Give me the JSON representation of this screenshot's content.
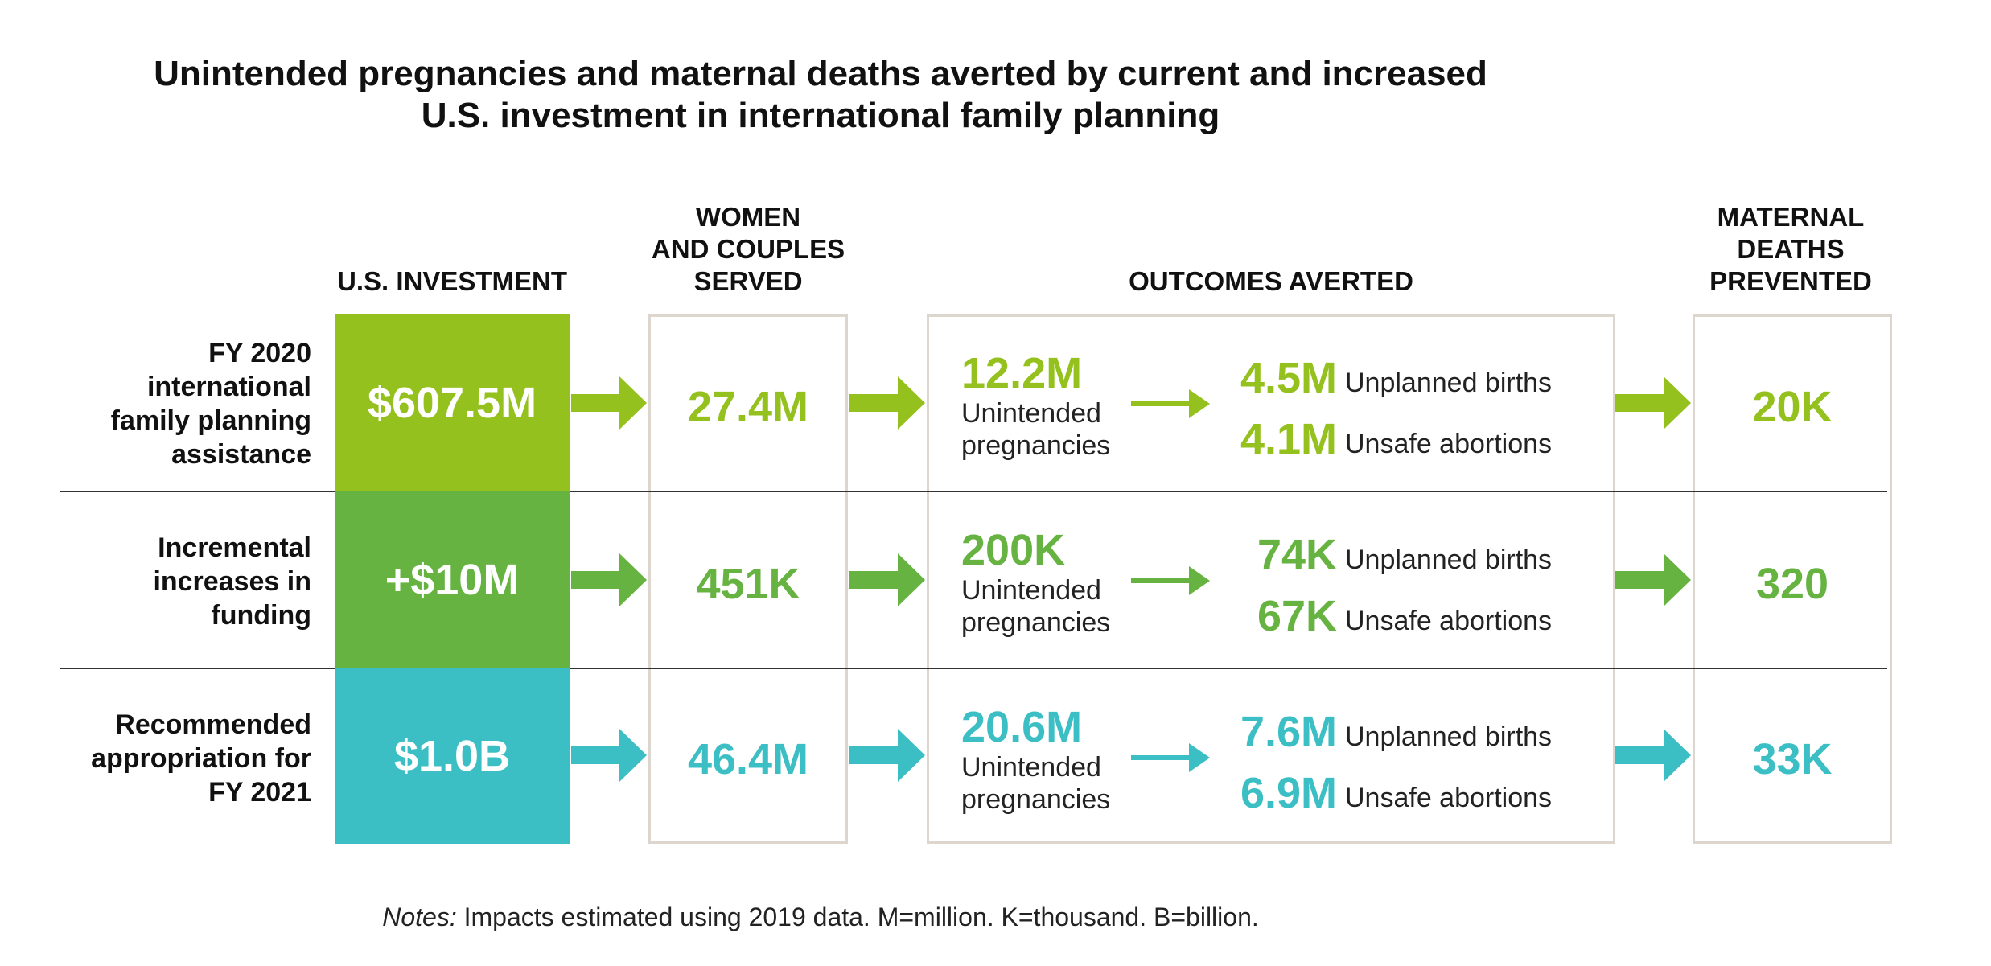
{
  "title_line1": "Unintended pregnancies and maternal deaths averted by current and increased",
  "title_line2": "U.S. investment in international family planning",
  "headers": {
    "investment": "U.S. INVESTMENT",
    "served_l1": "WOMEN",
    "served_l2": "AND COUPLES",
    "served_l3": "SERVED",
    "outcomes": "OUTCOMES AVERTED",
    "deaths_l1": "MATERNAL",
    "deaths_l2": "DEATHS",
    "deaths_l3": "PREVENTED"
  },
  "colors": {
    "row1": "#95c11f",
    "row2": "#66b342",
    "row3": "#3bbfc4",
    "frame": "#ddd6cf"
  },
  "rows": [
    {
      "label_l1": "FY 2020",
      "label_l2": "international",
      "label_l3": "family planning",
      "label_l4": "assistance",
      "investment": "$607.5M",
      "served": "27.4M",
      "unintended": "12.2M",
      "unintended_l1": "Unintended",
      "unintended_l2": "pregnancies",
      "births": "4.5M",
      "births_label": "Unplanned births",
      "abortions": "4.1M",
      "abortions_label": "Unsafe abortions",
      "deaths": "20K"
    },
    {
      "label_l1": "Incremental",
      "label_l2": "increases in",
      "label_l3": "funding",
      "investment": "+$10M",
      "served": "451K",
      "unintended": "200K",
      "unintended_l1": "Unintended",
      "unintended_l2": "pregnancies",
      "births": "74K",
      "births_label": "Unplanned births",
      "abortions": "67K",
      "abortions_label": "Unsafe abortions",
      "deaths": "320"
    },
    {
      "label_l1": "Recommended",
      "label_l2": "appropriation for",
      "label_l3": "FY 2021",
      "investment": "$1.0B",
      "served": "46.4M",
      "unintended": "20.6M",
      "unintended_l1": "Unintended",
      "unintended_l2": "pregnancies",
      "births": "7.6M",
      "births_label": "Unplanned births",
      "abortions": "6.9M",
      "abortions_label": "Unsafe abortions",
      "deaths": "33K"
    }
  ],
  "notes_prefix": "Notes:",
  "notes_text": " Impacts estimated using 2019 data. M=million. K=thousand. B=billion."
}
